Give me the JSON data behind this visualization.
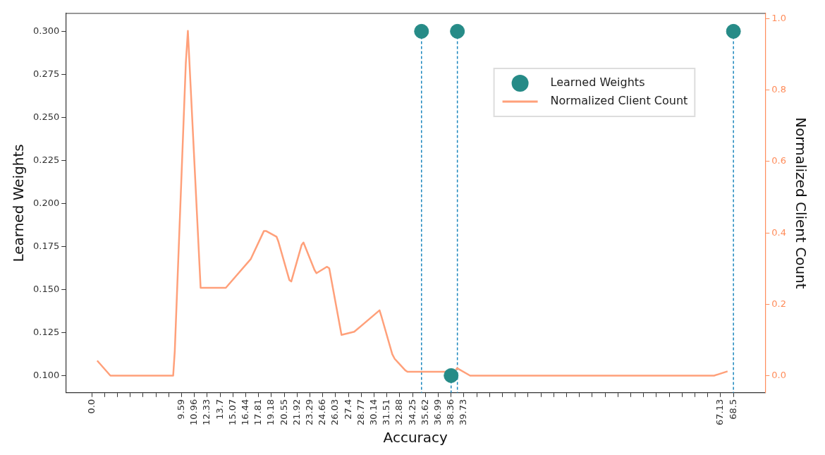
{
  "chart_data": {
    "type": "line",
    "xlabel": "Accuracy",
    "ylabel": "Learned Weights",
    "y2label": "Normalized Client Count",
    "xlim": [
      -2.78,
      71.9
    ],
    "ylim": [
      0.09,
      0.3104
    ],
    "y2lim": [
      -0.048,
      1.015
    ],
    "xticks": [
      {
        "value": 0,
        "label": "0.0"
      },
      {
        "value": 1.37,
        "label": null
      },
      {
        "value": 2.74,
        "label": null
      },
      {
        "value": 4.11,
        "label": null
      },
      {
        "value": 5.48,
        "label": null
      },
      {
        "value": 6.85,
        "label": null
      },
      {
        "value": 8.22,
        "label": null
      },
      9.59,
      10.96,
      12.33,
      13.7,
      15.07,
      16.44,
      17.81,
      19.18,
      20.55,
      21.92,
      23.29,
      24.66,
      26.03,
      27.4,
      28.77,
      30.14,
      31.51,
      32.88,
      34.25,
      35.62,
      36.99,
      38.36,
      39.73,
      {
        "value": 41.1,
        "label": null
      },
      {
        "value": 42.47,
        "label": null
      },
      {
        "value": 43.84,
        "label": null
      },
      {
        "value": 45.21,
        "label": null
      },
      {
        "value": 46.58,
        "label": null
      },
      {
        "value": 47.95,
        "label": null
      },
      {
        "value": 49.32,
        "label": null
      },
      {
        "value": 50.69,
        "label": null
      },
      {
        "value": 52.06,
        "label": null
      },
      {
        "value": 53.43,
        "label": null
      },
      {
        "value": 54.8,
        "label": null
      },
      {
        "value": 56.17,
        "label": null
      },
      {
        "value": 57.54,
        "label": null
      },
      {
        "value": 58.91,
        "label": null
      },
      {
        "value": 60.28,
        "label": null
      },
      {
        "value": 61.65,
        "label": null
      },
      {
        "value": 63.02,
        "label": null
      },
      {
        "value": 64.39,
        "label": null
      },
      {
        "value": 65.76,
        "label": null
      },
      67.13,
      68.5
    ],
    "yticks": [
      {
        "value": 0.1,
        "label": "0.100"
      },
      0.125,
      {
        "value": 0.15,
        "label": "0.150"
      },
      0.175,
      {
        "value": 0.2,
        "label": "0.200"
      },
      0.225,
      {
        "value": 0.25,
        "label": "0.250"
      },
      0.275,
      {
        "value": 0.3,
        "label": "0.300"
      }
    ],
    "y2ticks": [
      {
        "value": 0,
        "label": "0.0"
      },
      0.2,
      0.4,
      0.6,
      0.8,
      {
        "value": 1,
        "label": "1.0"
      }
    ],
    "legend": "top right",
    "grid": false,
    "series": [
      {
        "name": "Learned Weights",
        "type": "lollipop",
        "color": "#268b87",
        "marker": "circle",
        "line_style": "dashed",
        "x": [
          35.2,
          38.36,
          39.03,
          68.5
        ],
        "values": [
          0.3,
          0.1,
          0.3,
          0.3
        ]
      },
      {
        "name": "Normalized Client Count",
        "axis": "y2",
        "color": "#ffa07a",
        "marker": "none",
        "line_style": "solid",
        "x": [
          0.58,
          1.99,
          8.69,
          8.86,
          10.04,
          10.26,
          11.62,
          14.31,
          16.98,
          18.37,
          18.63,
          19.73,
          19.93,
          21.09,
          21.3,
          22.4,
          22.6,
          23.78,
          23.99,
          25.09,
          25.35,
          26.66,
          28.02,
          30.72,
          30.9,
          32.08,
          32.34,
          33.46,
          33.7,
          38.74,
          39.0,
          40.39,
          66.43,
          67.87
        ],
        "values": [
          0.042,
          0.0,
          0.0,
          0.068,
          0.876,
          0.966,
          0.246,
          0.246,
          0.327,
          0.405,
          0.405,
          0.389,
          0.375,
          0.268,
          0.264,
          0.366,
          0.373,
          0.296,
          0.287,
          0.305,
          0.301,
          0.114,
          0.123,
          0.183,
          0.168,
          0.06,
          0.047,
          0.015,
          0.011,
          0.011,
          0.021,
          0.0,
          0.0,
          0.012
        ]
      }
    ]
  }
}
